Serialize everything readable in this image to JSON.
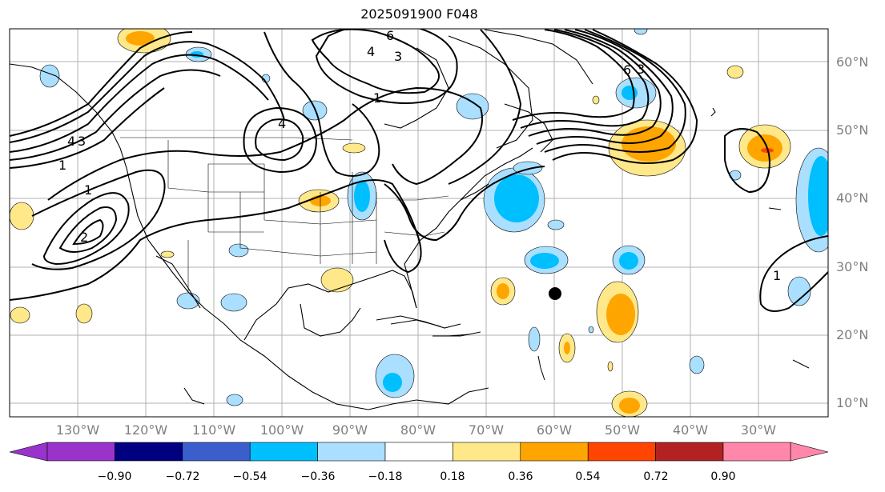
{
  "title": "2025091900 F048",
  "lat_labels": [
    "60°N",
    "50°N",
    "40°N",
    "30°N",
    "20°N",
    "10°N"
  ],
  "lon_labels": [
    "130°W",
    "120°W",
    "110°W",
    "100°W",
    "90°W",
    "80°W",
    "70°W",
    "60°W",
    "50°W",
    "40°W",
    "30°W"
  ],
  "colorbar": {
    "colors": [
      "#9933cc",
      "#000080",
      "#3a5fcd",
      "#00bfff",
      "#aadfff",
      "#ffffff",
      "#ffe88a",
      "#ffa500",
      "#ff4500",
      "#b22222",
      "#ff88aa"
    ],
    "tick_labels": [
      "−0.90",
      "−0.72",
      "−0.54",
      "−0.36",
      "−0.18",
      "0.18",
      "0.36",
      "0.54",
      "0.72",
      "0.90"
    ]
  },
  "contour_labels": [
    "6",
    "4",
    "3",
    "1",
    "4",
    "3",
    "1",
    "6",
    "3",
    "4",
    "2",
    "1",
    "1"
  ],
  "colors": {
    "contour": "#000000",
    "coast": "#000000",
    "grid": "#b0b0b0",
    "label": "#7f7f7f"
  },
  "marker": "storm-center-marker"
}
